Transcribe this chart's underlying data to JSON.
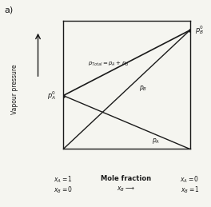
{
  "title_label": "a)",
  "xlabel": "Mole fraction",
  "xlabel_sub": "$x_B \\longrightarrow$",
  "ylabel": "Vapour pressure",
  "x": [
    0.0,
    1.0
  ],
  "pA0": 0.45,
  "pB0": 1.0,
  "left_label": "$p_A^0$",
  "right_label": "$p_B^0$",
  "pA_label": "$p_A$",
  "pB_label": "$p_B$",
  "pTotal_label": "$p_{Total}= p_A + p_B$",
  "bottom_left_x": "$x_A=1$",
  "bottom_left_b": "$x_B=0$",
  "bottom_right_x": "$x_A=0$",
  "bottom_right_b": "$x_B=1$",
  "line_color": "#1a1a1a",
  "background_color": "#f5f5f0",
  "ylim": [
    0.0,
    1.08
  ],
  "xlim": [
    0.0,
    1.0
  ]
}
